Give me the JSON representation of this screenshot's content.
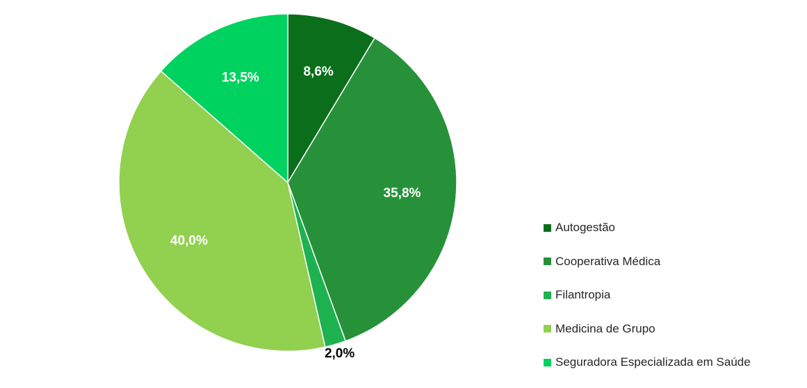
{
  "chart_data": {
    "type": "pie",
    "categories": [
      "Autogestão",
      "Cooperativa Médica",
      "Filantropia",
      "Medicina de Grupo",
      "Seguradora Especializada em Saúde"
    ],
    "values": [
      8.6,
      35.8,
      2.0,
      40.0,
      13.5
    ],
    "labels": [
      "8,6%",
      "35,8%",
      "2,0%",
      "40,0%",
      "13,5%"
    ],
    "colors": [
      "#0b6e1a",
      "#27913a",
      "#1db24f",
      "#92d050",
      "#00d25f"
    ],
    "label_colors": [
      "#ffffff",
      "#ffffff",
      "#000000",
      "#ffffff",
      "#ffffff"
    ],
    "legend_position": "right",
    "start_angle": "12 o'clock",
    "direction": "clockwise"
  }
}
